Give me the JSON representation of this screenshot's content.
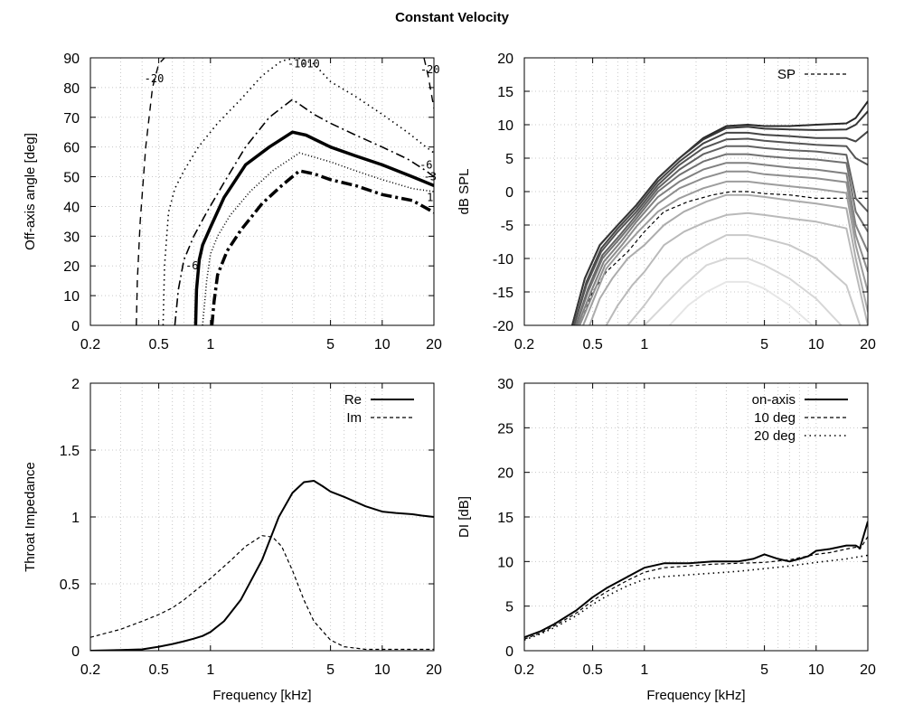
{
  "title": "Constant Velocity",
  "chart_data": [
    {
      "id": "polar",
      "type": "line",
      "xlabel": "",
      "ylabel": "Off-axis angle [deg]",
      "xscale": "log",
      "xlim": [
        0.2,
        20
      ],
      "ylim": [
        0,
        90
      ],
      "xticks": [
        "0.2",
        "0.5",
        "1",
        "5",
        "10",
        "20"
      ],
      "yticks": [
        "0",
        "10",
        "20",
        "30",
        "40",
        "50",
        "60",
        "70",
        "80",
        "90"
      ],
      "contour_labels": [
        "-20",
        "-20",
        "-10",
        "-10",
        "-6",
        "-6",
        "-3",
        "1"
      ],
      "series": [
        {
          "level": "-20",
          "style": "dash-thin",
          "x": [
            0.37,
            0.375,
            0.39,
            0.42,
            0.46,
            0.5,
            0.54
          ],
          "y": [
            0,
            15,
            35,
            60,
            80,
            88,
            90
          ]
        },
        {
          "level": "-20b",
          "style": "dash-thin",
          "x": [
            17.5,
            18.5,
            20
          ],
          "y": [
            90,
            84,
            73
          ]
        },
        {
          "level": "-10",
          "style": "dot",
          "x": [
            0.53,
            0.54,
            0.57,
            0.62,
            0.7,
            0.85,
            1.1,
            1.5,
            2.0,
            2.6,
            3.2,
            4,
            5,
            7,
            10,
            14,
            18,
            20
          ],
          "y": [
            0,
            20,
            38,
            46,
            52,
            60,
            68,
            76,
            84,
            89,
            90,
            88,
            82,
            77,
            71,
            65,
            60,
            58
          ]
        },
        {
          "level": "-6",
          "style": "dashdot-thin",
          "x": [
            0.62,
            0.65,
            0.7,
            0.8,
            0.95,
            1.2,
            1.6,
            2.2,
            3.0,
            4,
            5,
            7,
            10,
            14,
            18,
            20
          ],
          "y": [
            0,
            12,
            22,
            30,
            38,
            48,
            60,
            70,
            76,
            71,
            68,
            64,
            60,
            56,
            52,
            50
          ]
        },
        {
          "level": "-3",
          "style": "solid-thick",
          "x": [
            0.82,
            0.83,
            0.86,
            0.9,
            1.0,
            1.2,
            1.6,
            2.2,
            3.0,
            3.6,
            5,
            7,
            10,
            15,
            20
          ],
          "y": [
            0,
            12,
            22,
            27,
            33,
            43,
            54,
            60,
            65,
            64,
            60,
            57,
            54,
            50,
            47
          ]
        },
        {
          "level": "-2",
          "style": "dot-thin",
          "x": [
            0.9,
            0.95,
            1.0,
            1.1,
            1.3,
            1.7,
            2.3,
            3.3,
            5,
            7,
            10,
            15,
            20
          ],
          "y": [
            0,
            15,
            24,
            30,
            37,
            45,
            52,
            58,
            55,
            52,
            49,
            46,
            45
          ]
        },
        {
          "level": "1",
          "style": "dashdot-thick",
          "x": [
            1.02,
            1.05,
            1.1,
            1.25,
            1.5,
            2.0,
            2.6,
            3.3,
            4,
            5,
            7,
            10,
            15,
            20
          ],
          "y": [
            0,
            8,
            17,
            25,
            32,
            41,
            47,
            52,
            51,
            49,
            47,
            44,
            42,
            38
          ]
        }
      ]
    },
    {
      "id": "spl",
      "type": "line",
      "xlabel": "",
      "ylabel": "dB SPL",
      "xscale": "log",
      "xlim": [
        0.2,
        20
      ],
      "ylim": [
        -20,
        20
      ],
      "xticks": [
        "0.2",
        "0.5",
        "1",
        "5",
        "10",
        "20"
      ],
      "yticks": [
        "-20",
        "-15",
        "-10",
        "-5",
        "0",
        "5",
        "10",
        "15",
        "20"
      ],
      "legend": "top-right",
      "series": [
        {
          "name": "SP",
          "style": "dash",
          "x": [
            0.42,
            0.5,
            0.6,
            0.8,
            1.0,
            1.3,
            1.8,
            2.5,
            3.2,
            4,
            5,
            7,
            10,
            15,
            20
          ],
          "y": [
            -20,
            -15,
            -12,
            -9,
            -6,
            -3,
            -1.5,
            -0.5,
            0,
            0,
            -0.3,
            -0.5,
            -1,
            -1,
            -1
          ]
        },
        {
          "name": "",
          "style": "solid",
          "x": [
            0.38,
            0.45,
            0.55,
            0.7,
            0.9,
            1.2,
            1.6,
            2.2,
            3,
            4,
            5,
            7,
            10,
            15,
            17,
            20
          ],
          "y": [
            -20,
            -13,
            -8,
            -5,
            -2,
            2,
            5,
            8,
            9.8,
            10,
            9.8,
            9.8,
            10,
            10.2,
            11,
            13.5
          ]
        },
        {
          "name": "",
          "style": "solid",
          "x": [
            0.38,
            0.45,
            0.55,
            0.7,
            0.9,
            1.2,
            1.6,
            2.2,
            3,
            4,
            5,
            7,
            10,
            15,
            17,
            20
          ],
          "y": [
            -20,
            -13,
            -8,
            -5,
            -2,
            2,
            5,
            7.8,
            9.5,
            9.7,
            9.4,
            9.3,
            9.2,
            9.3,
            10,
            12
          ]
        },
        {
          "name": "",
          "style": "solid",
          "x": [
            0.39,
            0.46,
            0.56,
            0.7,
            0.9,
            1.2,
            1.6,
            2.2,
            3,
            4,
            5,
            7,
            10,
            15,
            17,
            20
          ],
          "y": [
            -20,
            -13.5,
            -8.5,
            -5.5,
            -2.5,
            1.5,
            4.5,
            7.2,
            8.8,
            8.8,
            8.5,
            8.3,
            8.0,
            8.0,
            7.5,
            9
          ]
        },
        {
          "name": "",
          "style": "solid",
          "x": [
            0.39,
            0.46,
            0.56,
            0.7,
            0.9,
            1.2,
            1.6,
            2.2,
            3,
            4,
            5,
            7,
            10,
            15,
            17,
            20
          ],
          "y": [
            -20,
            -14,
            -9,
            -6,
            -3,
            1,
            4,
            6.5,
            7.8,
            7.9,
            7.6,
            7.3,
            7.0,
            6.8,
            5,
            4
          ]
        },
        {
          "name": "",
          "style": "solid",
          "x": [
            0.4,
            0.47,
            0.57,
            0.72,
            0.9,
            1.2,
            1.6,
            2.2,
            3,
            4,
            5,
            7,
            10,
            15,
            17,
            20
          ],
          "y": [
            -20,
            -14.5,
            -9.5,
            -6.5,
            -3.5,
            0.5,
            3.3,
            5.6,
            6.8,
            6.8,
            6.5,
            6.2,
            6,
            5.5,
            -1,
            -3
          ]
        },
        {
          "name": "",
          "style": "solid",
          "x": [
            0.4,
            0.47,
            0.57,
            0.72,
            0.9,
            1.2,
            1.6,
            2.2,
            3,
            4,
            5,
            7,
            10,
            15,
            17,
            20
          ],
          "y": [
            -20,
            -15,
            -10,
            -7,
            -4,
            0,
            2.5,
            4.5,
            5.6,
            5.6,
            5.3,
            5,
            4.8,
            4.3,
            -3,
            -6
          ]
        },
        {
          "name": "",
          "style": "solid",
          "x": [
            0.41,
            0.48,
            0.58,
            0.73,
            0.9,
            1.2,
            1.6,
            2.2,
            3,
            4,
            5,
            7,
            10,
            15,
            17,
            20
          ],
          "y": [
            -20,
            -15.5,
            -10.5,
            -7.5,
            -4.5,
            -0.8,
            1.5,
            3.3,
            4.3,
            4.3,
            4,
            3.6,
            3.3,
            2.7,
            -5,
            -9
          ]
        },
        {
          "name": "",
          "style": "solid",
          "x": [
            0.42,
            0.49,
            0.59,
            0.74,
            0.9,
            1.2,
            1.6,
            2.2,
            3,
            4,
            5,
            7,
            10,
            15,
            17,
            20
          ],
          "y": [
            -20,
            -16,
            -11,
            -8,
            -5.2,
            -1.8,
            0.5,
            2,
            3,
            3,
            2.6,
            2.3,
            2,
            1.4,
            -6.5,
            -12
          ]
        },
        {
          "name": "",
          "style": "solid",
          "x": [
            0.44,
            0.5,
            0.6,
            0.75,
            0.92,
            1.2,
            1.6,
            2.2,
            3,
            4,
            5,
            7,
            10,
            15,
            17,
            20
          ],
          "y": [
            -20,
            -16.5,
            -11.5,
            -8.5,
            -6,
            -3,
            -1,
            0.5,
            1.5,
            1.5,
            1.2,
            0.8,
            0.4,
            -0.2,
            -8,
            -15
          ]
        },
        {
          "name": "",
          "style": "solid",
          "x": [
            0.48,
            0.55,
            0.65,
            0.8,
            1.0,
            1.3,
            1.7,
            2.3,
            3,
            4,
            5,
            7,
            10,
            15,
            17,
            20
          ],
          "y": [
            -20,
            -16,
            -13,
            -10,
            -8,
            -5,
            -3,
            -1.5,
            -0.5,
            -0.5,
            -0.8,
            -1.3,
            -1.8,
            -2.5,
            -10,
            -18
          ]
        },
        {
          "name": "",
          "style": "solid",
          "x": [
            0.6,
            0.7,
            0.85,
            1.0,
            1.3,
            1.7,
            2.3,
            3,
            4,
            5,
            7,
            10,
            15,
            17,
            20
          ],
          "y": [
            -20,
            -17,
            -14,
            -12,
            -8,
            -6,
            -4.5,
            -3.5,
            -3.2,
            -3.5,
            -4,
            -4.5,
            -5.5,
            -12,
            -20
          ]
        },
        {
          "name": "",
          "style": "solid",
          "x": [
            0.8,
            1.0,
            1.3,
            1.7,
            2.3,
            3,
            4,
            5,
            7,
            10,
            15,
            18
          ],
          "y": [
            -20,
            -17,
            -13,
            -10,
            -8,
            -6.5,
            -6.5,
            -7,
            -8,
            -10,
            -14,
            -20
          ]
        },
        {
          "name": "",
          "style": "solid",
          "x": [
            1.0,
            1.3,
            1.7,
            2.3,
            3,
            4,
            5,
            7,
            10,
            14
          ],
          "y": [
            -20,
            -17,
            -14,
            -11,
            -10,
            -10,
            -11,
            -13,
            -16,
            -20
          ]
        },
        {
          "name": "",
          "style": "solid",
          "x": [
            1.4,
            1.8,
            2.3,
            3,
            4,
            5,
            7,
            9.5
          ],
          "y": [
            -20,
            -17,
            -15,
            -13.5,
            -13.5,
            -14.5,
            -17,
            -20
          ]
        }
      ]
    },
    {
      "id": "impedance",
      "type": "line",
      "xlabel": "Frequency [kHz]",
      "ylabel": "Throat Impedance",
      "xscale": "log",
      "xlim": [
        0.2,
        20
      ],
      "ylim": [
        0,
        2
      ],
      "xticks": [
        "0.2",
        "0.5",
        "1",
        "5",
        "10",
        "20"
      ],
      "yticks": [
        "0",
        "0.5",
        "1",
        "1.5",
        "2"
      ],
      "legend": "top-right",
      "series": [
        {
          "name": "Re",
          "style": "solid",
          "x": [
            0.2,
            0.3,
            0.4,
            0.5,
            0.6,
            0.7,
            0.8,
            0.9,
            1.0,
            1.2,
            1.5,
            2.0,
            2.5,
            3.0,
            3.5,
            4.0,
            4.5,
            5,
            6,
            8,
            10,
            12,
            15,
            17,
            20
          ],
          "y": [
            0,
            0.005,
            0.01,
            0.03,
            0.05,
            0.07,
            0.09,
            0.11,
            0.14,
            0.22,
            0.38,
            0.68,
            1.0,
            1.18,
            1.26,
            1.27,
            1.23,
            1.19,
            1.15,
            1.08,
            1.04,
            1.03,
            1.02,
            1.01,
            1.0
          ]
        },
        {
          "name": "Im",
          "style": "dash",
          "x": [
            0.2,
            0.3,
            0.4,
            0.5,
            0.6,
            0.7,
            0.8,
            1.0,
            1.3,
            1.6,
            2.0,
            2.3,
            2.6,
            3.0,
            3.5,
            4.0,
            5,
            6,
            8,
            10,
            15,
            20
          ],
          "y": [
            0.1,
            0.16,
            0.22,
            0.27,
            0.32,
            0.38,
            0.44,
            0.54,
            0.67,
            0.78,
            0.86,
            0.85,
            0.78,
            0.6,
            0.38,
            0.22,
            0.08,
            0.03,
            0.01,
            0.01,
            0.01,
            0.01
          ]
        }
      ]
    },
    {
      "id": "di",
      "type": "line",
      "xlabel": "Frequency [kHz]",
      "ylabel": "DI [dB]",
      "xscale": "log",
      "xlim": [
        0.2,
        20
      ],
      "ylim": [
        0,
        30
      ],
      "xticks": [
        "0.2",
        "0.5",
        "1",
        "5",
        "10",
        "20"
      ],
      "yticks": [
        "0",
        "5",
        "10",
        "15",
        "20",
        "25",
        "30"
      ],
      "legend": "top-right",
      "series": [
        {
          "name": "on-axis",
          "style": "solid",
          "x": [
            0.2,
            0.25,
            0.3,
            0.4,
            0.5,
            0.6,
            0.8,
            1.0,
            1.3,
            1.8,
            2.5,
            3.5,
            4.3,
            5,
            6,
            7,
            8,
            9,
            10,
            12,
            15,
            17,
            18,
            20
          ],
          "y": [
            1.5,
            2.2,
            3.0,
            4.5,
            6.0,
            7.0,
            8.3,
            9.3,
            9.8,
            9.8,
            10.0,
            10.0,
            10.3,
            10.8,
            10.3,
            10.0,
            10.3,
            10.6,
            11.2,
            11.4,
            11.8,
            11.8,
            11.5,
            14.5
          ]
        },
        {
          "name": "10 deg",
          "style": "dash",
          "x": [
            0.2,
            0.25,
            0.3,
            0.4,
            0.5,
            0.6,
            0.8,
            1.0,
            1.3,
            1.8,
            2.5,
            3.5,
            5,
            7,
            10,
            12,
            15,
            17,
            18,
            20
          ],
          "y": [
            1.3,
            2.0,
            2.8,
            4.2,
            5.6,
            6.6,
            7.9,
            8.8,
            9.3,
            9.5,
            9.7,
            9.8,
            9.9,
            10.2,
            10.8,
            11.0,
            11.4,
            11.6,
            11.4,
            12.8
          ]
        },
        {
          "name": "20 deg",
          "style": "dot",
          "x": [
            0.2,
            0.25,
            0.3,
            0.4,
            0.5,
            0.6,
            0.8,
            1.0,
            1.3,
            1.8,
            2.5,
            3.5,
            5,
            7,
            10,
            15,
            20
          ],
          "y": [
            1.2,
            1.9,
            2.6,
            3.9,
            5.2,
            6.1,
            7.3,
            8.0,
            8.3,
            8.5,
            8.7,
            8.9,
            9.2,
            9.5,
            9.9,
            10.3,
            10.7
          ]
        }
      ]
    }
  ]
}
